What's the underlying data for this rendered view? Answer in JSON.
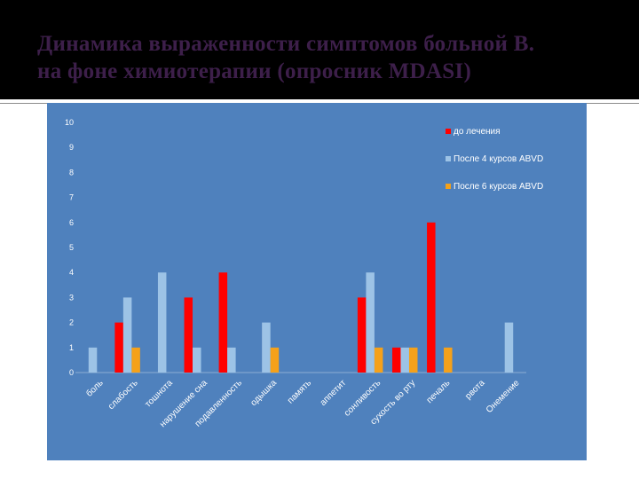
{
  "slide": {
    "title_line1": "Динамика выраженности симптомов больной В.",
    "title_line2": "на фоне химиотерапии (опросник MDASI)"
  },
  "chart_data": {
    "type": "bar",
    "categories": [
      "боль",
      "слабость",
      "тошнота",
      "нарушение сна",
      "подавленность",
      "одышка",
      "память",
      "аппетит",
      "сонливость",
      "сухость во рту",
      "печаль",
      "рвота",
      "Онемение"
    ],
    "series": [
      {
        "name": "до лечения",
        "color": "#ff0000",
        "values": [
          0,
          2,
          0,
          3,
          4,
          0,
          0,
          0,
          3,
          1,
          6,
          0,
          0
        ]
      },
      {
        "name": "После 4 курсов ABVD",
        "color": "#9dc3e6",
        "values": [
          1,
          3,
          4,
          1,
          1,
          2,
          0,
          0,
          4,
          1,
          0,
          0,
          2
        ]
      },
      {
        "name": "После 6 курсов ABVD",
        "color": "#f5a11a",
        "values": [
          0,
          1,
          0,
          0,
          0,
          1,
          0,
          0,
          1,
          1,
          1,
          0,
          0
        ]
      }
    ],
    "ylim": [
      0,
      10
    ],
    "yticks": [
      0,
      1,
      2,
      3,
      4,
      5,
      6,
      7,
      8,
      9,
      10
    ],
    "legend_position": "top-right",
    "grid": false,
    "background_color": "#4f81bd"
  }
}
